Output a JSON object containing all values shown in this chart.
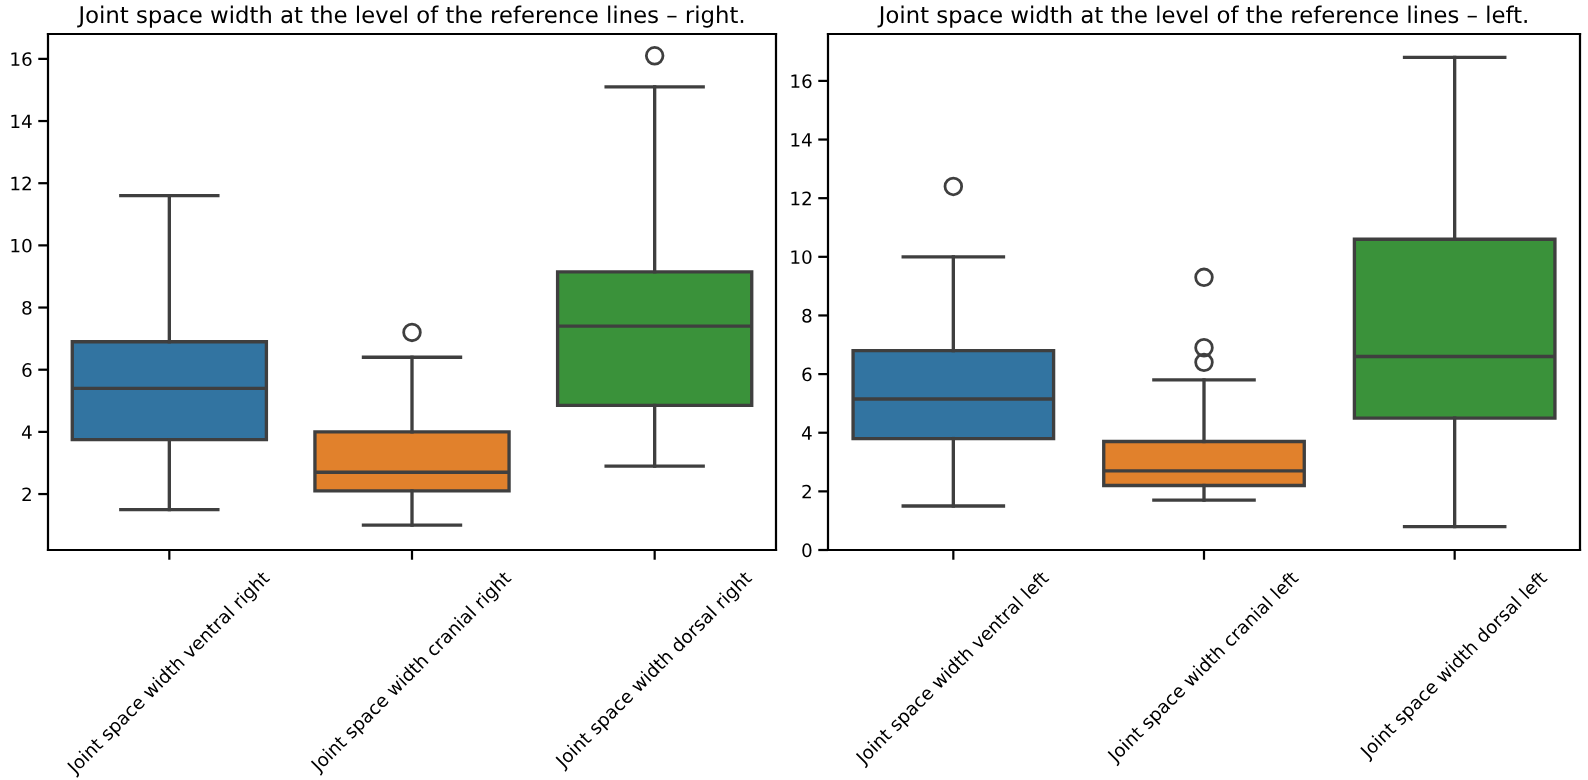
{
  "chart_data": [
    {
      "type": "box",
      "title": "Joint space width at the level of the reference lines – right.",
      "categories": [
        "Joint space width ventral right",
        "Joint space width cranial right",
        "Joint space width dorsal right"
      ],
      "colors": [
        "#3274a1",
        "#e1812c",
        "#3a923a"
      ],
      "boxes": [
        {
          "low": 1.5,
          "q1": 3.75,
          "median": 5.4,
          "q3": 6.9,
          "high": 11.6
        },
        {
          "low": 1.0,
          "q1": 2.1,
          "median": 2.7,
          "q3": 4.0,
          "high": 6.4,
          "outliers": [
            7.2
          ]
        },
        {
          "low": 2.9,
          "q1": 4.85,
          "median": 7.4,
          "q3": 9.15,
          "high": 15.1,
          "outliers": [
            16.1
          ]
        }
      ],
      "ylim": [
        0.2,
        16.8
      ],
      "yticks": [
        2,
        4,
        6,
        8,
        10,
        12,
        14,
        16
      ],
      "grid": false
    },
    {
      "type": "box",
      "title": "Joint space width at the level of the reference lines – left.",
      "categories": [
        "Joint space width ventral left",
        "Joint space width cranial left",
        "Joint space width dorsal left"
      ],
      "colors": [
        "#3274a1",
        "#e1812c",
        "#3a923a"
      ],
      "boxes": [
        {
          "low": 1.5,
          "q1": 3.8,
          "median": 5.15,
          "q3": 6.8,
          "high": 10.0,
          "outliers": [
            12.4
          ]
        },
        {
          "low": 1.7,
          "q1": 2.2,
          "median": 2.7,
          "q3": 3.7,
          "high": 5.8,
          "outliers": [
            6.4,
            6.9,
            9.3
          ]
        },
        {
          "low": 0.8,
          "q1": 4.5,
          "median": 6.6,
          "q3": 10.6,
          "high": 16.8
        }
      ],
      "ylim": [
        0,
        17.6
      ],
      "yticks": [
        0,
        2,
        4,
        6,
        8,
        10,
        12,
        14,
        16
      ],
      "grid": false
    }
  ]
}
